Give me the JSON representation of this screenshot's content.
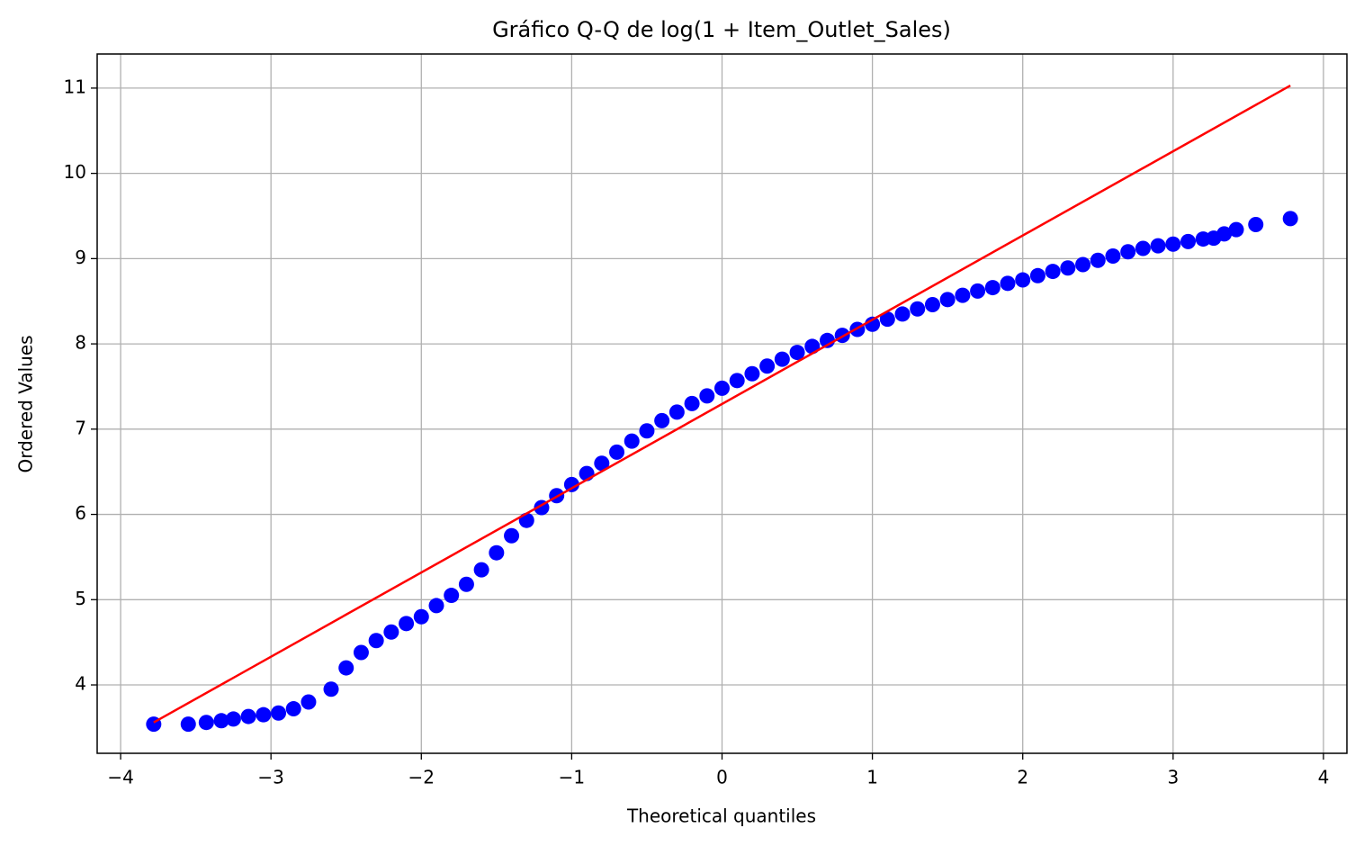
{
  "chart_data": {
    "type": "scatter",
    "title": "Gráfico Q-Q de log(1 + Item_Outlet_Sales)",
    "x_label": "Theoretical quantiles",
    "y_label": "Ordered Values",
    "grid": true,
    "xlim": [
      -4.156,
      4.156
    ],
    "ylim": [
      3.198,
      11.4
    ],
    "xticks": [
      {
        "value": -4,
        "label": "−4"
      },
      {
        "value": -3,
        "label": "−3"
      },
      {
        "value": -2,
        "label": "−2"
      },
      {
        "value": -1,
        "label": "−1"
      },
      0,
      1,
      2,
      3,
      4
    ],
    "yticks": [
      4,
      5,
      6,
      7,
      8,
      9,
      10,
      11
    ],
    "series": [
      {
        "color": "#0000ff",
        "style": "markers",
        "x": [
          -3.78,
          -3.55,
          -3.43,
          -3.33,
          -3.25,
          -3.15,
          -3.05,
          -2.95,
          -2.85,
          -2.75,
          -2.6,
          -2.5,
          -2.4,
          -2.3,
          -2.2,
          -2.1,
          -2.0,
          -1.9,
          -1.8,
          -1.7,
          -1.6,
          -1.5,
          -1.4,
          -1.3,
          -1.2,
          -1.1,
          -1.0,
          -0.9,
          -0.8,
          -0.7,
          -0.6,
          -0.5,
          -0.4,
          -0.3,
          -0.2,
          -0.1,
          0,
          0.1,
          0.2,
          0.3,
          0.4,
          0.5,
          0.6,
          0.7,
          0.8,
          0.9,
          1.0,
          1.1,
          1.2,
          1.3,
          1.4,
          1.5,
          1.6,
          1.7,
          1.8,
          1.9,
          2.0,
          2.1,
          2.2,
          2.3,
          2.4,
          2.5,
          2.6,
          2.7,
          2.8,
          2.9,
          3.0,
          3.1,
          3.2,
          3.27,
          3.34,
          3.42,
          3.55,
          3.78
        ],
        "values": [
          3.54,
          3.54,
          3.56,
          3.58,
          3.6,
          3.63,
          3.65,
          3.67,
          3.72,
          3.8,
          3.95,
          4.2,
          4.38,
          4.52,
          4.62,
          4.72,
          4.8,
          4.93,
          5.05,
          5.18,
          5.35,
          5.55,
          5.75,
          5.93,
          6.08,
          6.22,
          6.35,
          6.48,
          6.6,
          6.73,
          6.86,
          6.98,
          7.1,
          7.2,
          7.3,
          7.39,
          7.48,
          7.57,
          7.65,
          7.74,
          7.82,
          7.9,
          7.97,
          8.04,
          8.1,
          8.17,
          8.23,
          8.29,
          8.35,
          8.41,
          8.46,
          8.52,
          8.57,
          8.62,
          8.66,
          8.71,
          8.75,
          8.8,
          8.85,
          8.89,
          8.93,
          8.98,
          9.03,
          9.08,
          9.12,
          9.15,
          9.17,
          9.2,
          9.23,
          9.24,
          9.29,
          9.34,
          9.4,
          9.47
        ]
      },
      {
        "color": "#ff0000",
        "style": "line",
        "x": [
          -3.78,
          3.78
        ],
        "values": [
          3.56,
          11.03
        ]
      }
    ]
  }
}
